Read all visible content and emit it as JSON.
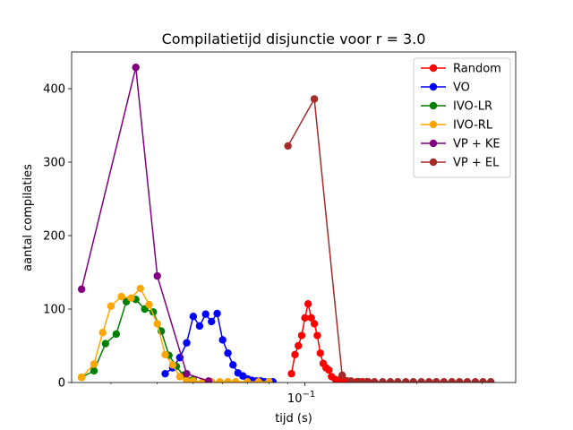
{
  "chart_data": {
    "type": "line",
    "title": "Compilatietijd disjunctie voor r = 3.0",
    "xlabel": "tijd (s)",
    "ylabel": "aantal compilaties",
    "xscale": "log",
    "xlim": [
      0.0235,
      0.37
    ],
    "ylim": [
      0,
      450
    ],
    "yticks": [
      0,
      100,
      200,
      300,
      400
    ],
    "xtick_major": [
      {
        "value": 0.1,
        "label": "10",
        "exp": "−1"
      }
    ],
    "xtick_minor": [
      0.03,
      0.04,
      0.05,
      0.06,
      0.07,
      0.08,
      0.09,
      0.2,
      0.3
    ],
    "grid": false,
    "legend": "top-right",
    "series": [
      {
        "name": "Random",
        "color": "#ff0000",
        "x": [
          0.092,
          0.094,
          0.096,
          0.098,
          0.1,
          0.102,
          0.104,
          0.106,
          0.108,
          0.11,
          0.112,
          0.114,
          0.116,
          0.118,
          0.121,
          0.124,
          0.127,
          0.13,
          0.134,
          0.138,
          0.143,
          0.148
        ],
        "y": [
          12,
          38,
          50,
          64,
          88,
          107,
          88,
          80,
          64,
          40,
          26,
          20,
          17,
          8,
          4,
          3,
          2,
          2,
          1,
          1,
          1,
          1
        ]
      },
      {
        "name": "VO",
        "color": "#0000ff",
        "x": [
          0.042,
          0.044,
          0.046,
          0.048,
          0.05,
          0.052,
          0.054,
          0.056,
          0.058,
          0.06,
          0.062,
          0.064,
          0.066,
          0.068,
          0.07,
          0.072,
          0.074,
          0.076,
          0.078,
          0.08,
          0.082
        ],
        "y": [
          12,
          20,
          34,
          54,
          90,
          77,
          93,
          83,
          94,
          58,
          40,
          24,
          13,
          9,
          5,
          3,
          2,
          2,
          1,
          1,
          1
        ]
      },
      {
        "name": "IVO-LR",
        "color": "#008000",
        "x": [
          0.025,
          0.027,
          0.029,
          0.031,
          0.033,
          0.035,
          0.037,
          0.039,
          0.041,
          0.043,
          0.045,
          0.047,
          0.05
        ],
        "y": [
          7,
          16,
          53,
          66,
          110,
          113,
          100,
          96,
          70,
          37,
          22,
          10,
          4
        ]
      },
      {
        "name": "IVO-RL",
        "color": "#ffa500",
        "x": [
          0.025,
          0.027,
          0.0285,
          0.03,
          0.032,
          0.034,
          0.036,
          0.038,
          0.04,
          0.042,
          0.044,
          0.046,
          0.048,
          0.05,
          0.053,
          0.056,
          0.059,
          0.062,
          0.065,
          0.07,
          0.075,
          0.08
        ],
        "y": [
          7,
          25,
          68,
          104,
          117,
          115,
          128,
          106,
          80,
          38,
          24,
          8,
          3,
          2,
          1,
          1,
          1,
          1,
          1,
          1,
          1,
          1
        ]
      },
      {
        "name": "VP + KE",
        "color": "#800080",
        "x": [
          0.025,
          0.035,
          0.04,
          0.048,
          0.055
        ],
        "y": [
          127,
          429,
          145,
          12,
          2
        ]
      },
      {
        "name": "VP + EL",
        "color": "#a52a2a",
        "x": [
          0.09,
          0.106,
          0.126,
          0.133,
          0.14,
          0.147,
          0.154,
          0.162,
          0.17,
          0.178,
          0.187,
          0.196,
          0.206,
          0.216,
          0.226,
          0.237,
          0.249,
          0.261,
          0.274,
          0.288,
          0.302,
          0.317
        ],
        "y": [
          322,
          386,
          10,
          2,
          1,
          1,
          1,
          1,
          1,
          1,
          1,
          1,
          1,
          1,
          1,
          1,
          1,
          1,
          1,
          1,
          1,
          1
        ]
      }
    ]
  }
}
